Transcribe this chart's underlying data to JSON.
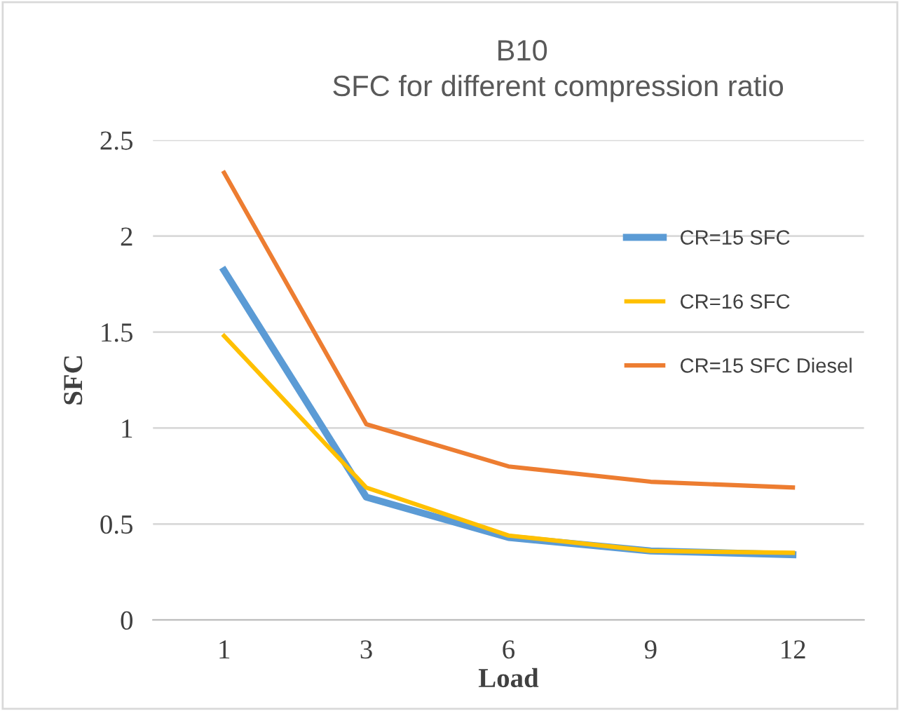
{
  "chart_data": {
    "type": "line",
    "title": "B10",
    "subtitle": "SFC for different compression ratio",
    "xlabel": "Load",
    "ylabel": "SFC",
    "categories": [
      "1",
      "3",
      "6",
      "9",
      "12"
    ],
    "series": [
      {
        "name": "CR=15 SFC",
        "color": "#5b9bd5",
        "values": [
          1.82,
          0.64,
          0.43,
          0.36,
          0.34
        ]
      },
      {
        "name": "CR=16 SFC",
        "color": "#ffc000",
        "values": [
          1.48,
          0.69,
          0.44,
          0.36,
          0.35
        ]
      },
      {
        "name": "CR=15 SFC Diesel",
        "color": "#ed7d31",
        "values": [
          2.33,
          1.02,
          0.8,
          0.72,
          0.69
        ]
      }
    ],
    "ylim": [
      0,
      2.5
    ],
    "yticks": [
      0,
      0.5,
      1,
      1.5,
      2,
      2.5
    ],
    "grid": "y",
    "legend": "right",
    "marker": "none",
    "line_style": "solid"
  }
}
